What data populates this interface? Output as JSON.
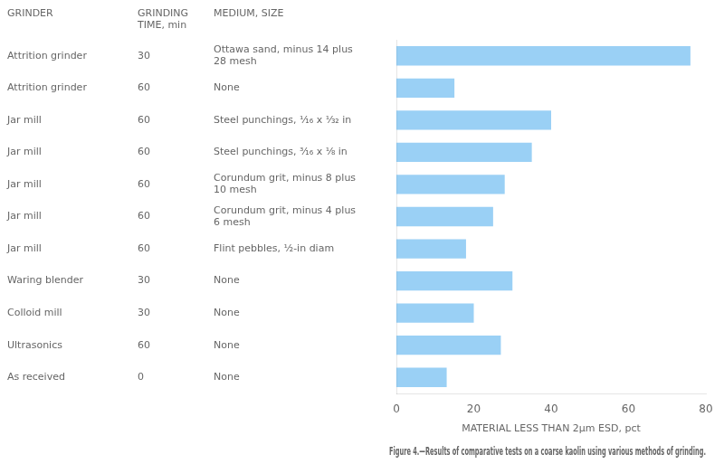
{
  "chart_data": {
    "type": "bar",
    "orientation": "horizontal",
    "title": "Figure 4.—Results of comparative tests on a coarse kaolin using various methods of grinding.",
    "xlabel": "MATERIAL LESS THAN 2μm ESD, pct",
    "table": {
      "columns": [
        "GRINDER",
        "GRINDING\nTIME, min",
        "MEDIUM, SIZE"
      ],
      "rows": [
        [
          "Attrition grinder",
          "30",
          "Ottawa sand, minus 14 plus\n28 mesh"
        ],
        [
          "Attrition grinder",
          "60",
          "None"
        ],
        [
          "Jar mill",
          "60",
          "Steel punchings, ¹⁄₁₆ x ¹⁄₃₂ in"
        ],
        [
          "Jar mill",
          "60",
          "Steel punchings, ³⁄₁₆ x ¹⁄₈ in"
        ],
        [
          "Jar mill",
          "60",
          "Corundum grit, minus 8 plus\n10 mesh"
        ],
        [
          "Jar mill",
          "60",
          "Corundum grit, minus 4 plus\n6 mesh"
        ],
        [
          "Jar mill",
          "60",
          "Flint pebbles, ¹⁄₂-in diam"
        ],
        [
          "Waring blender",
          "30",
          "None"
        ],
        [
          "Colloid mill",
          "30",
          "None"
        ],
        [
          "Ultrasonics",
          "60",
          "None"
        ],
        [
          "As received",
          "0",
          "None"
        ]
      ]
    },
    "values": [
      76,
      15,
      40,
      35,
      28,
      25,
      18,
      30,
      20,
      27,
      13
    ],
    "xlim": [
      0,
      80
    ],
    "xticks": [
      0,
      20,
      40,
      60,
      80
    ],
    "grid": false,
    "tick_labels": "x"
  }
}
